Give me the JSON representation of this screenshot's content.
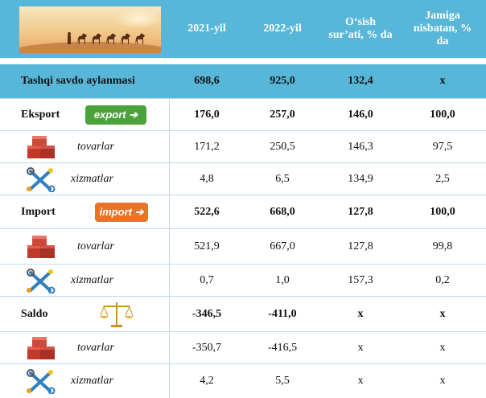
{
  "colors": {
    "header_bg": "#58b7d9",
    "grid": "#bfd9e6",
    "export_badge": "#4aa33a",
    "import_badge": "#e8742a"
  },
  "header": {
    "col1": "2021-yil",
    "col2": "2022-yil",
    "col3": "O‘sish sur’ati, % da",
    "col4": "Jamiga nisbatan, % da",
    "banner_icon": "desert-caravan-banner"
  },
  "rows": [
    {
      "label": "Tashqi savdo aylanmasi",
      "v1": "698,6",
      "v2": "925,0",
      "v3": "132,4",
      "v4": "x"
    },
    {
      "label": "Eksport",
      "badge": "export",
      "v1": "176,0",
      "v2": "257,0",
      "v3": "146,0",
      "v4": "100,0"
    },
    {
      "label": "tovarlar",
      "icon": "boxes-icon",
      "v1": "171,2",
      "v2": "250,5",
      "v3": "146,3",
      "v4": "97,5"
    },
    {
      "label": "xizmatlar",
      "icon": "tools-icon",
      "v1": "4,8",
      "v2": "6,5",
      "v3": "134,9",
      "v4": "2,5"
    },
    {
      "label": "Import",
      "badge": "import",
      "v1": "522,6",
      "v2": "668,0",
      "v3": "127,8",
      "v4": "100,0"
    },
    {
      "label": "tovarlar",
      "icon": "boxes-icon",
      "v1": "521,9",
      "v2": "667,0",
      "v3": "127,8",
      "v4": "99,8"
    },
    {
      "label": "xizmatlar",
      "icon": "tools-icon",
      "v1": "0,7",
      "v2": "1,0",
      "v3": "157,3",
      "v4": "0,2"
    },
    {
      "label": "Saldo",
      "icon": "scales-icon",
      "v1": "-346,5",
      "v2": "-411,0",
      "v3": "x",
      "v4": "x"
    },
    {
      "label": "tovarlar",
      "icon": "boxes-icon",
      "v1": "-350,7",
      "v2": "-416,5",
      "v3": "x",
      "v4": "x"
    },
    {
      "label": "xizmatlar",
      "icon": "tools-icon",
      "v1": "4,2",
      "v2": "5,5",
      "v3": "x",
      "v4": "x"
    }
  ]
}
